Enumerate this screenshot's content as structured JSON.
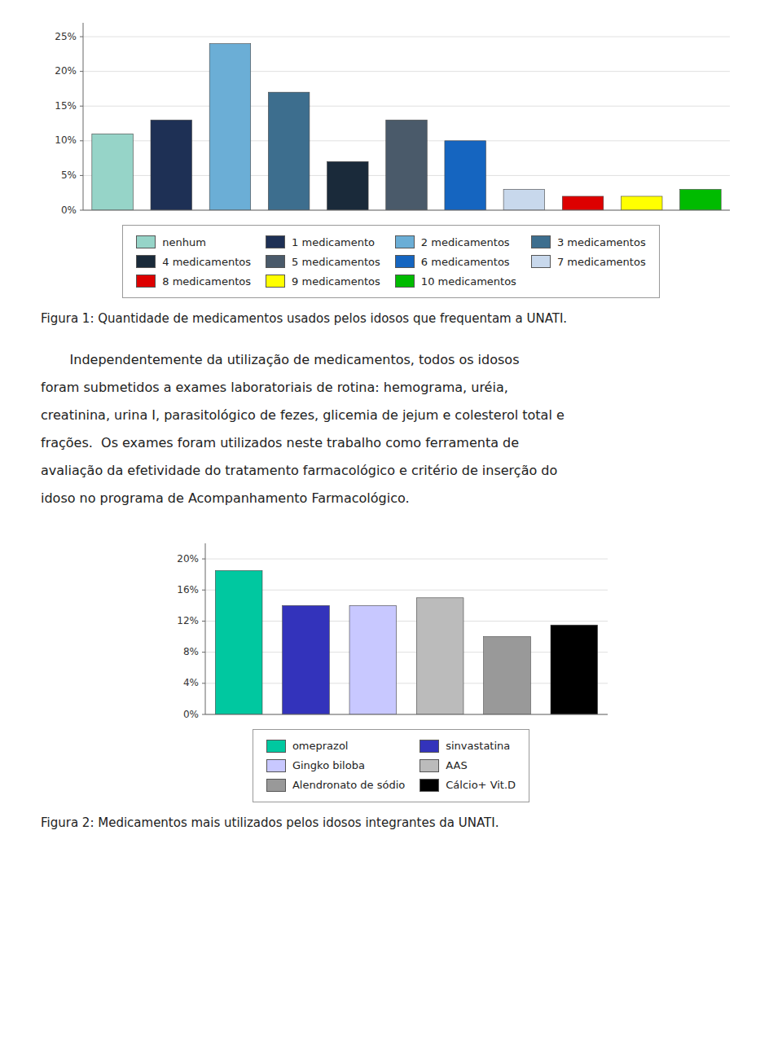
{
  "chart_data": [
    {
      "type": "bar",
      "title": "Figura 1: Quantidade de medicamentos usados pelos idosos que frequentam a UNATI.",
      "categories": [
        "nenhum",
        "1 medicamento",
        "2 medicamentos",
        "3 medicamentos",
        "4 medicamentos",
        "5 medicamentos",
        "6 medicamentos",
        "7 medicamentos",
        "8 medicamentos",
        "9 medicamentos",
        "10 medicamentos"
      ],
      "values": [
        0.11,
        0.13,
        0.24,
        0.17,
        0.07,
        0.13,
        0.1,
        0.03,
        0.02,
        0.02,
        0.03
      ],
      "colors": [
        "#96d4c8",
        "#1e3055",
        "#6baed6",
        "#3d6e8e",
        "#1a2a3a",
        "#4a5a6a",
        "#1565c0",
        "#c8d8ec",
        "#dd0000",
        "#ffff00",
        "#00bb00"
      ],
      "ylim": [
        0,
        0.27
      ],
      "yticks": [
        {
          "value": 0,
          "label": "0%"
        },
        {
          "value": 0.05,
          "label": "5%"
        },
        {
          "value": 0.1,
          "label": "10%"
        },
        {
          "value": 0.15,
          "label": "15%"
        },
        {
          "value": 0.2,
          "label": "20%"
        },
        {
          "value": 0.25,
          "label": "25%"
        }
      ],
      "grid": true,
      "legend": "bottom",
      "tick_labels": "y"
    },
    {
      "type": "bar",
      "title": "Figura 2: Medicamentos mais utilizados pelos idosos integrantes da UNATI.",
      "categories": [
        "omeprazol",
        "sinvastatina",
        "Gingko biloba",
        "AAS",
        "Alendronato de sódio",
        "Cálcio+ Vit.D"
      ],
      "values": [
        0.185,
        0.14,
        0.14,
        0.15,
        0.1,
        0.115
      ],
      "colors": [
        "#00c8a0",
        "#3333bb",
        "#c8c8ff",
        "#bbbbbb",
        "#999999",
        "#000000"
      ],
      "ylim": [
        0,
        0.22
      ],
      "yticks": [
        {
          "value": 0,
          "label": "0%"
        },
        {
          "value": 0.04,
          "label": "4%"
        },
        {
          "value": 0.08,
          "label": "8%"
        },
        {
          "value": 0.12,
          "label": "12%"
        },
        {
          "value": 0.16,
          "label": "16%"
        },
        {
          "value": 0.2,
          "label": "20%"
        }
      ],
      "grid": true,
      "legend": "bottom",
      "tick_labels": "y"
    }
  ],
  "paragraph": [
    "       Independentemente da utilização de medicamentos, todos os idosos",
    "foram submetidos a exames laboratoriais de rotina: hemograma, uréia,",
    "creatinina, urina I, parasitológico de fezes, glicemia de jejum e colesterol total e",
    "frações.  Os exames foram utilizados neste trabalho como ferramenta de",
    "avaliação da efetividade do tratamento farmacológico e critério de inserção do",
    "idoso no programa de Acompanhamento Farmacológico."
  ]
}
